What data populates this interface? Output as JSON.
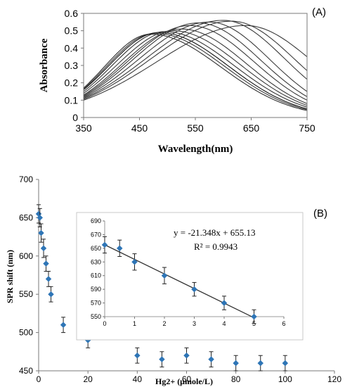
{
  "chart_data": [
    {
      "type": "line",
      "panel_label": "(A)",
      "xlabel": "Wavelength(nm)",
      "ylabel": "Absorbance",
      "xlim": [
        350,
        750
      ],
      "ylim": [
        0,
        0.6
      ],
      "x_ticks": [
        350,
        450,
        550,
        650,
        750
      ],
      "y_ticks": [
        0,
        0.1,
        0.2,
        0.3,
        0.4,
        0.5,
        0.6
      ],
      "grid": false,
      "series": [
        {
          "peak_wavelength": 470,
          "peak_absorbance": 0.48,
          "start_absorbance": 0.17,
          "end_absorbance": 0.04,
          "color": "#2f2f2f"
        },
        {
          "peak_wavelength": 478,
          "peak_absorbance": 0.485,
          "start_absorbance": 0.165,
          "end_absorbance": 0.045,
          "color": "#3a3a3a"
        },
        {
          "peak_wavelength": 485,
          "peak_absorbance": 0.49,
          "start_absorbance": 0.16,
          "end_absorbance": 0.05,
          "color": "#111111"
        },
        {
          "peak_wavelength": 495,
          "peak_absorbance": 0.495,
          "start_absorbance": 0.15,
          "end_absorbance": 0.06,
          "color": "#333333"
        },
        {
          "peak_wavelength": 510,
          "peak_absorbance": 0.5,
          "start_absorbance": 0.14,
          "end_absorbance": 0.07,
          "color": "#3a3a3a"
        },
        {
          "peak_wavelength": 525,
          "peak_absorbance": 0.51,
          "start_absorbance": 0.13,
          "end_absorbance": 0.08,
          "color": "#3a3a3a"
        },
        {
          "peak_wavelength": 540,
          "peak_absorbance": 0.53,
          "start_absorbance": 0.125,
          "end_absorbance": 0.1,
          "color": "#3a3a3a"
        },
        {
          "peak_wavelength": 555,
          "peak_absorbance": 0.545,
          "start_absorbance": 0.12,
          "end_absorbance": 0.12,
          "color": "#3a3a3a"
        },
        {
          "peak_wavelength": 575,
          "peak_absorbance": 0.55,
          "start_absorbance": 0.115,
          "end_absorbance": 0.15,
          "color": "#3a3a3a"
        },
        {
          "peak_wavelength": 600,
          "peak_absorbance": 0.56,
          "start_absorbance": 0.11,
          "end_absorbance": 0.22,
          "color": "#3a3a3a"
        },
        {
          "peak_wavelength": 615,
          "peak_absorbance": 0.555,
          "start_absorbance": 0.105,
          "end_absorbance": 0.27,
          "color": "#3a3a3a"
        },
        {
          "peak_wavelength": 640,
          "peak_absorbance": 0.53,
          "start_absorbance": 0.1,
          "end_absorbance": 0.35,
          "color": "#3a3a3a"
        }
      ]
    },
    {
      "type": "scatter",
      "panel_label": "(B)",
      "xlabel": "Hg2+ (μmole/L)",
      "ylabel": "SPR shift  (nm)",
      "xlim": [
        0,
        120
      ],
      "ylim": [
        450,
        700
      ],
      "x_ticks": [
        0,
        20,
        40,
        60,
        80,
        100,
        120
      ],
      "y_ticks": [
        450,
        500,
        550,
        600,
        650,
        700
      ],
      "grid": false,
      "marker_color": "#2e75b6",
      "x": [
        0,
        0.5,
        1,
        2,
        3,
        4,
        5,
        10,
        20,
        40,
        50,
        60,
        70,
        80,
        90,
        100
      ],
      "y": [
        655,
        650,
        630,
        610,
        590,
        570,
        550,
        510,
        490,
        470,
        465,
        470,
        465,
        460,
        460,
        460
      ],
      "y_err": [
        12,
        12,
        12,
        12,
        10,
        10,
        10,
        10,
        10,
        10,
        10,
        10,
        10,
        10,
        10,
        10
      ]
    },
    {
      "type": "scatter",
      "role": "inset of (B)",
      "xlim": [
        0,
        6
      ],
      "ylim": [
        550,
        690
      ],
      "x_ticks": [
        0,
        1,
        2,
        3,
        4,
        5,
        6
      ],
      "y_ticks": [
        550,
        570,
        590,
        610,
        630,
        650,
        670,
        690
      ],
      "grid": false,
      "marker_color": "#2e75b6",
      "x": [
        0,
        0.5,
        1,
        2,
        3,
        4,
        5
      ],
      "y": [
        655,
        650,
        630,
        610,
        590,
        570,
        550
      ],
      "y_err": [
        12,
        12,
        12,
        12,
        10,
        10,
        10
      ],
      "trendline": {
        "slope": -21.348,
        "intercept": 655.13,
        "x_range": [
          0,
          5
        ]
      },
      "equation": "y = -21.348x + 655.13",
      "r_squared": "R² = 0.9943"
    }
  ]
}
